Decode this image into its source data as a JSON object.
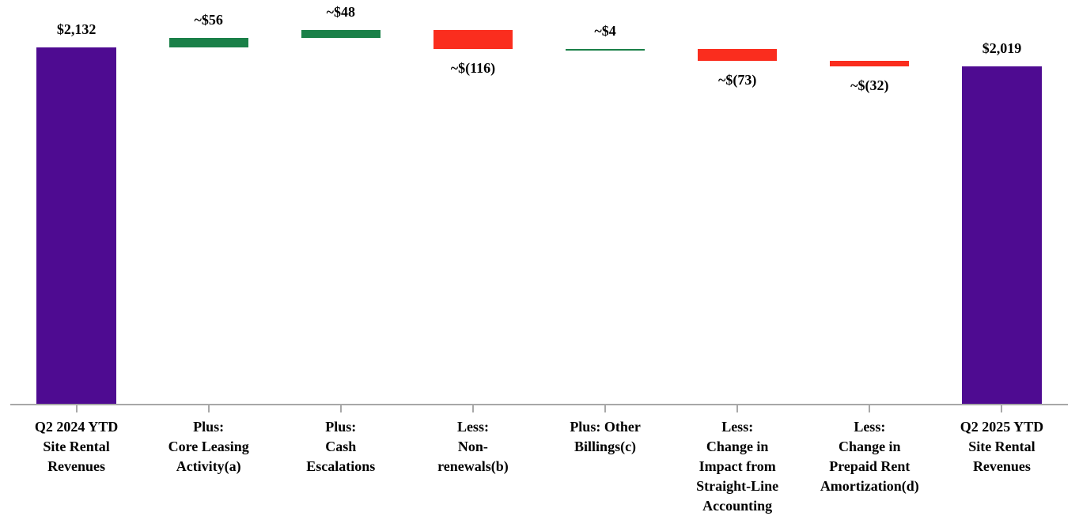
{
  "chart_data": {
    "type": "bar",
    "subtype": "waterfall",
    "title": "",
    "categories": [
      "Q2 2024 YTD\nSite Rental\nRevenues",
      "Plus:\nCore Leasing\nActivity(a)",
      "Plus:\nCash\nEscalations",
      "Less:\nNon-\nrenewals(b)",
      "Plus: Other\nBillings(c)",
      "Less:\nChange in\nImpact from\nStraight-Line\nAccounting",
      "Less:\nChange in\nPrepaid Rent\nAmortization(d)",
      "Q2 2025 YTD\nSite Rental\nRevenues"
    ],
    "steps": [
      {
        "label": "$2,132",
        "value": 2132,
        "kind": "total"
      },
      {
        "label": "~$56",
        "value": 56,
        "kind": "increase"
      },
      {
        "label": "~$48",
        "value": 48,
        "kind": "increase"
      },
      {
        "label": "~$(116)",
        "value": -116,
        "kind": "decrease"
      },
      {
        "label": "~$4",
        "value": 4,
        "kind": "increase"
      },
      {
        "label": "~$(73)",
        "value": -73,
        "kind": "decrease"
      },
      {
        "label": "~$(32)",
        "value": -32,
        "kind": "decrease"
      },
      {
        "label": "$2,019",
        "value": 2019,
        "kind": "total"
      }
    ],
    "colors": {
      "total": "#4E0B91",
      "increase": "#1A8048",
      "decrease": "#FA2D1E",
      "axis": "#A8A8A8",
      "label": "#000000"
    },
    "value_label_position": {
      "total": "above",
      "increase": "above",
      "decrease": "below"
    },
    "xlabel": "",
    "ylabel": "",
    "ylim": [
      0,
      2415
    ],
    "grid": false,
    "legend": "none"
  }
}
